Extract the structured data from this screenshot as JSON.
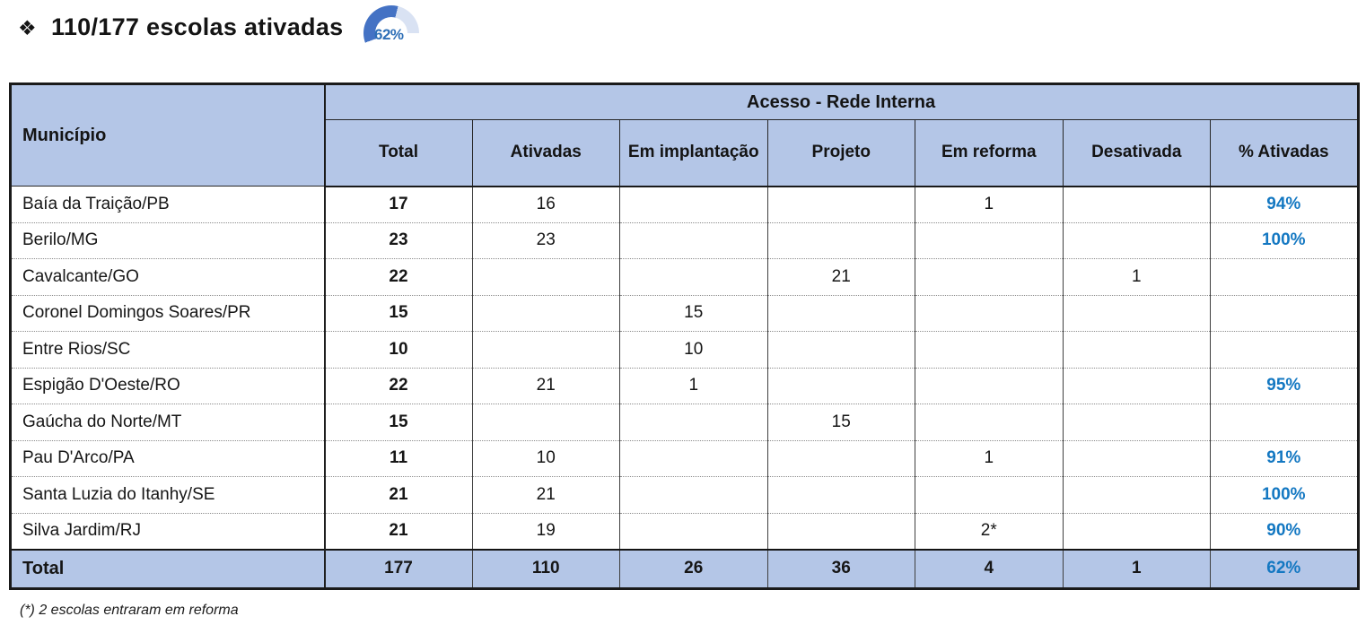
{
  "header": {
    "bullet": "❖",
    "title": "110/177 escolas ativadas",
    "gauge": {
      "label": "62%",
      "percent": 62,
      "arc_color": "#4472C4",
      "arc_bg_color": "#D9E2F3",
      "label_color": "#2E6FB7"
    }
  },
  "table": {
    "corner_header": "Município",
    "group_header": "Acesso - Rede Interna",
    "columns": [
      "Total",
      "Ativadas",
      "Em implantação",
      "Projeto",
      "Em reforma",
      "Desativada",
      "% Ativadas"
    ],
    "column_keys": [
      "total",
      "ativadas",
      "em-implantacao",
      "projeto",
      "em-reforma",
      "desativada",
      "pct-ativadas"
    ],
    "rows": [
      {
        "name": "Baía da Traição/PB",
        "values": [
          "17",
          "16",
          "",
          "",
          "1",
          "",
          "94%"
        ]
      },
      {
        "name": "Berilo/MG",
        "values": [
          "23",
          "23",
          "",
          "",
          "",
          "",
          "100%"
        ]
      },
      {
        "name": "Cavalcante/GO",
        "values": [
          "22",
          "",
          "",
          "21",
          "",
          "1",
          ""
        ]
      },
      {
        "name": "Coronel Domingos Soares/PR",
        "values": [
          "15",
          "",
          "15",
          "",
          "",
          "",
          ""
        ]
      },
      {
        "name": "Entre Rios/SC",
        "values": [
          "10",
          "",
          "10",
          "",
          "",
          "",
          ""
        ]
      },
      {
        "name": "Espigão D'Oeste/RO",
        "values": [
          "22",
          "21",
          "1",
          "",
          "",
          "",
          "95%"
        ]
      },
      {
        "name": "Gaúcha do Norte/MT",
        "values": [
          "15",
          "",
          "",
          "15",
          "",
          "",
          ""
        ]
      },
      {
        "name": "Pau D'Arco/PA",
        "values": [
          "11",
          "10",
          "",
          "",
          "1",
          "",
          "91%"
        ]
      },
      {
        "name": "Santa Luzia do Itanhy/SE",
        "values": [
          "21",
          "21",
          "",
          "",
          "",
          "",
          "100%"
        ]
      },
      {
        "name": "Silva Jardim/RJ",
        "values": [
          "21",
          "19",
          "",
          "",
          "2*",
          "",
          "90%"
        ]
      }
    ],
    "total_row": {
      "name": "Total",
      "values": [
        "177",
        "110",
        "26",
        "36",
        "4",
        "1",
        "62%"
      ]
    },
    "colors": {
      "header_bg": "#B4C6E7",
      "percent_text": "#1478C2",
      "outer_border": "#1A1A1A"
    }
  },
  "footnote": "(*) 2 escolas entraram em reforma"
}
